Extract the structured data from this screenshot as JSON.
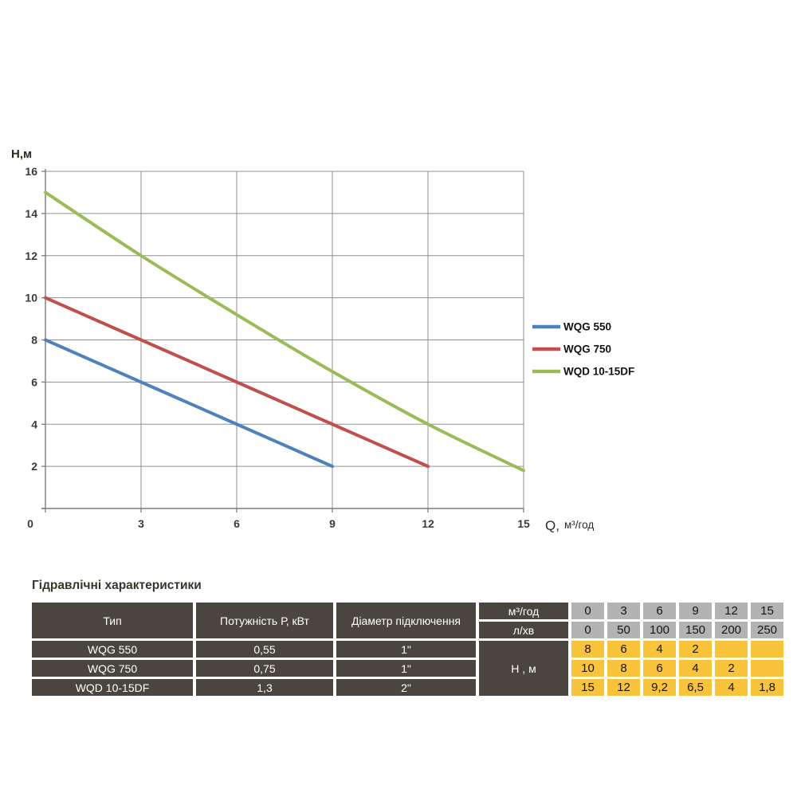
{
  "chart_data": {
    "type": "line",
    "title": "",
    "ylabel": "Н,м",
    "xlabel": "Q, м³/год",
    "xlim": [
      0,
      15
    ],
    "ylim": [
      0,
      16
    ],
    "xticks": [
      0,
      3,
      6,
      9,
      12,
      15
    ],
    "yticks": [
      2,
      4,
      6,
      8,
      10,
      12,
      14,
      16
    ],
    "grid": true,
    "legend_position": "right-middle",
    "colors": {
      "grid": "#8f8f8f",
      "axis": "#7c7c7c",
      "tick_text": "#3b3b3b",
      "axis_title_text": "#2d2820"
    },
    "series": [
      {
        "name": "WQG 550",
        "color": "#4F81BD",
        "x": [
          0,
          3,
          6,
          9
        ],
        "y": [
          8,
          6,
          4,
          2
        ]
      },
      {
        "name": "WQG 750",
        "color": "#C0504D",
        "x": [
          0,
          3,
          6,
          9,
          12
        ],
        "y": [
          10,
          8,
          6,
          4,
          2
        ]
      },
      {
        "name": "WQD 10-15DF",
        "color": "#9BBB59",
        "x": [
          0,
          3,
          6,
          9,
          12,
          15
        ],
        "y": [
          15,
          12,
          9.2,
          6.5,
          4,
          1.8
        ]
      }
    ]
  },
  "table": {
    "title": "Гідравлічні характеристики",
    "colors": {
      "header_bg": "#4a453e",
      "header_text": "#ffffff",
      "flow_bg": "#b3b3b3",
      "head_bg": "#f9c33c"
    },
    "header": {
      "type": "Тип",
      "power": "Потужність Р, кВт",
      "diameter": "Діаметр підключення",
      "flow_m3h_label": "м³/год",
      "flow_lmin_label": "л/хв",
      "head_label": "Н , м",
      "flow_m3h": [
        "0",
        "3",
        "6",
        "9",
        "12",
        "15"
      ],
      "flow_lmin": [
        "0",
        "50",
        "100",
        "150",
        "200",
        "250"
      ]
    },
    "rows": [
      {
        "type": "WQG 550",
        "power": "0,55",
        "diameter": "1\"",
        "head": [
          "8",
          "6",
          "4",
          "2",
          "",
          ""
        ]
      },
      {
        "type": "WQG 750",
        "power": "0,75",
        "diameter": "1\"",
        "head": [
          "10",
          "8",
          "6",
          "4",
          "2",
          ""
        ]
      },
      {
        "type": "WQD 10-15DF",
        "power": "1,3",
        "diameter": "2\"",
        "head": [
          "15",
          "12",
          "9,2",
          "6,5",
          "4",
          "1,8"
        ]
      }
    ]
  }
}
